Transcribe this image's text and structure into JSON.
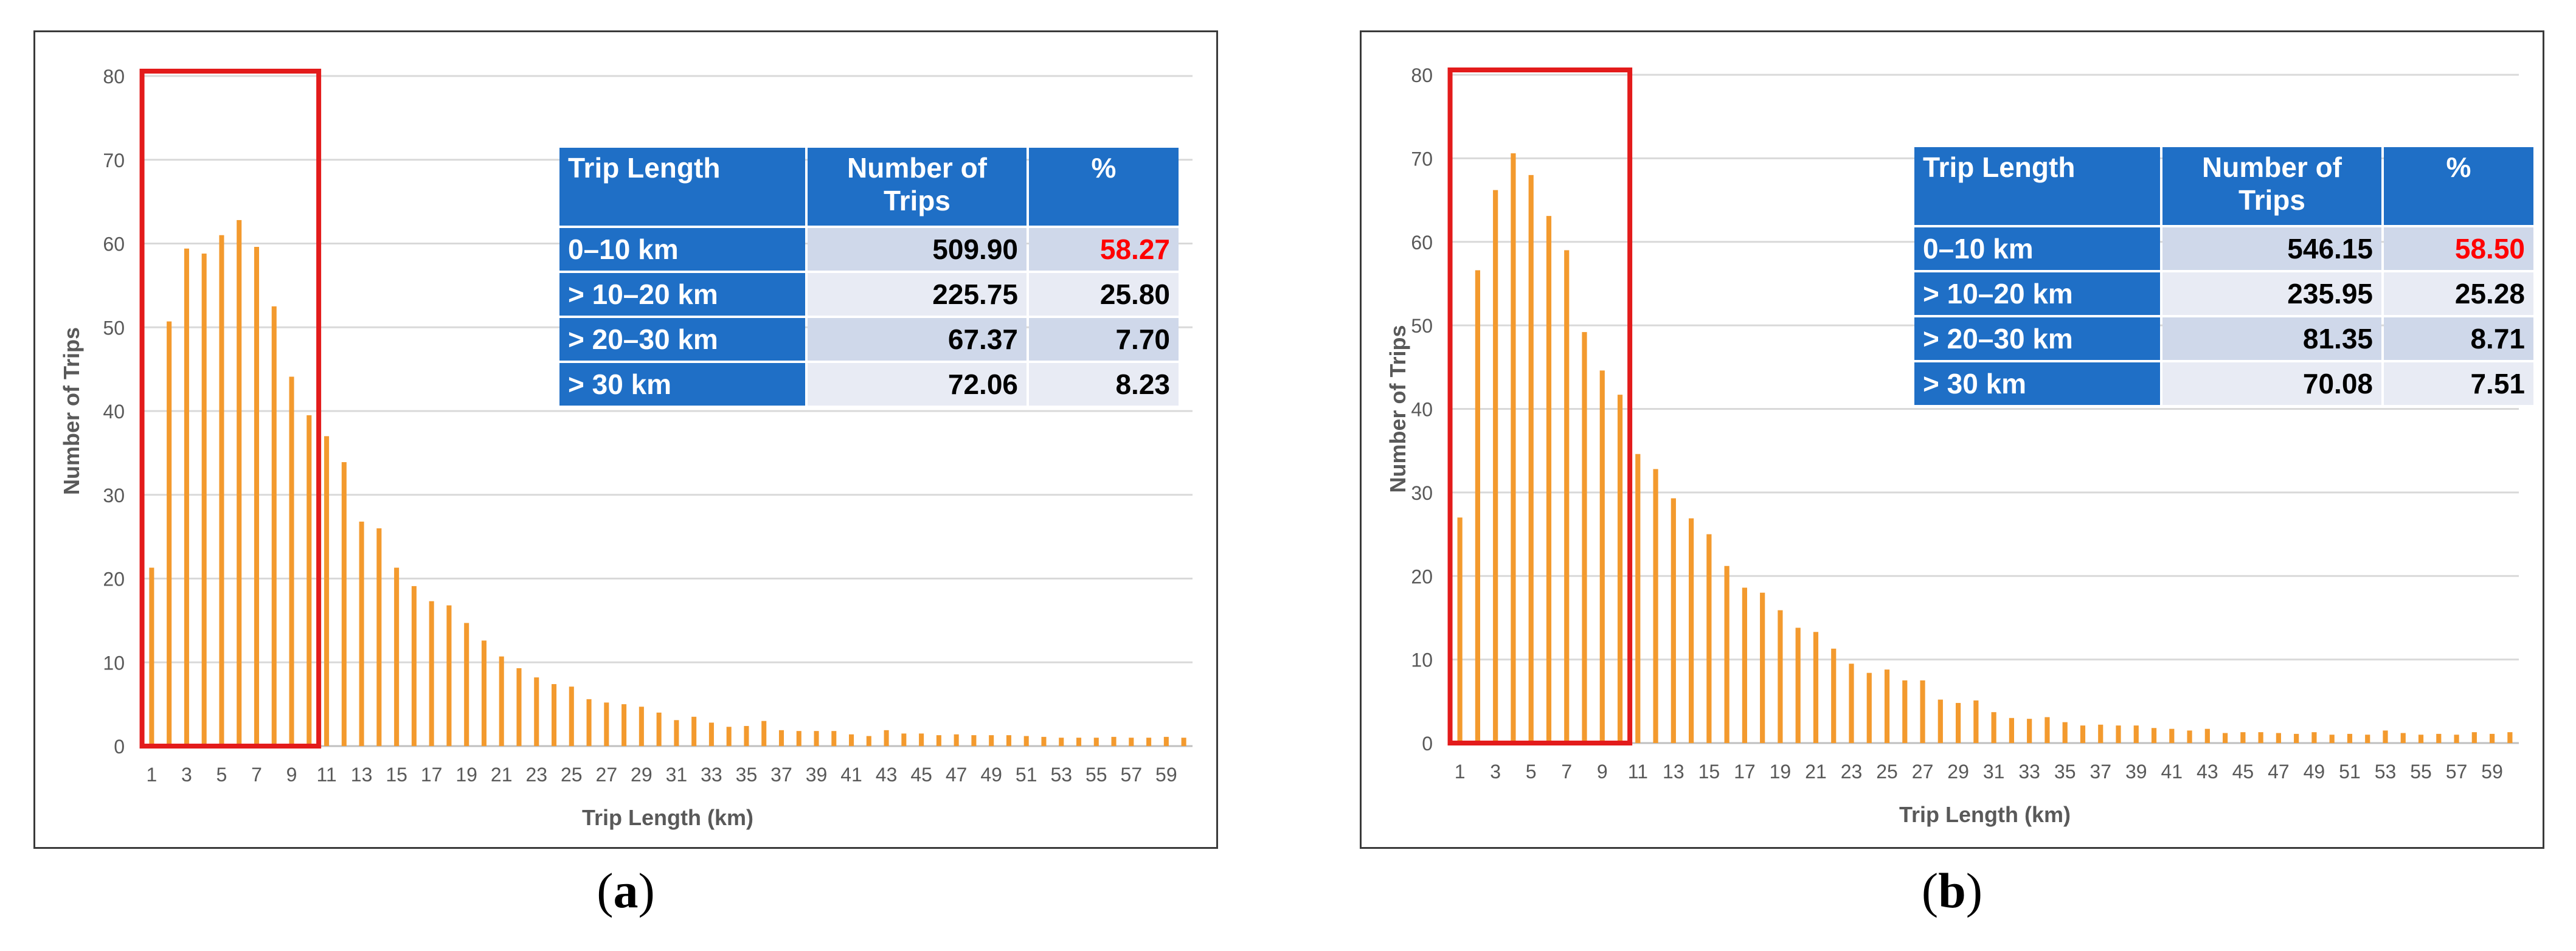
{
  "colors": {
    "bar": "#F39A2E",
    "frame": "#E31B1B",
    "header": "#1F6FC6",
    "highlight": "#FF0000",
    "grid": "#D9D9D9",
    "axis_text": "#595959"
  },
  "chart_data": [
    {
      "type": "bar",
      "panel_label": "a",
      "xlabel": "Trip Length (km)",
      "ylabel": "Number of Trips",
      "ylim": [
        0,
        80
      ],
      "yticks": [
        0,
        10,
        20,
        30,
        40,
        50,
        60,
        70,
        80
      ],
      "x": [
        1,
        2,
        3,
        4,
        5,
        6,
        7,
        8,
        9,
        10,
        11,
        12,
        13,
        14,
        15,
        16,
        17,
        18,
        19,
        20,
        21,
        22,
        23,
        24,
        25,
        26,
        27,
        28,
        29,
        30,
        31,
        32,
        33,
        34,
        35,
        36,
        37,
        38,
        39,
        40,
        41,
        42,
        43,
        44,
        45,
        46,
        47,
        48,
        49,
        50,
        51,
        52,
        53,
        54,
        55,
        56,
        57,
        58,
        59,
        60
      ],
      "xtick_labels": [
        "1",
        "3",
        "5",
        "7",
        "9",
        "11",
        "13",
        "15",
        "17",
        "19",
        "21",
        "23",
        "25",
        "27",
        "29",
        "31",
        "33",
        "35",
        "37",
        "39",
        "41",
        "43",
        "45",
        "47",
        "49",
        "51",
        "53",
        "55",
        "57",
        "59"
      ],
      "values": [
        21.3,
        50.7,
        59.4,
        58.8,
        61.0,
        62.8,
        59.6,
        52.5,
        44.1,
        39.5,
        37.0,
        33.9,
        26.8,
        26.0,
        21.3,
        19.1,
        17.3,
        16.8,
        14.7,
        12.6,
        10.7,
        9.3,
        8.2,
        7.4,
        7.1,
        5.6,
        5.2,
        5.0,
        4.7,
        4.0,
        3.1,
        3.5,
        2.8,
        2.3,
        2.4,
        3.0,
        1.9,
        1.8,
        1.8,
        1.8,
        1.4,
        1.2,
        1.9,
        1.5,
        1.5,
        1.3,
        1.4,
        1.3,
        1.3,
        1.3,
        1.2,
        1.1,
        1.0,
        1.0,
        1.0,
        1.1,
        1.0,
        1.0,
        1.1,
        1.0
      ],
      "highlight_range": [
        1,
        10
      ],
      "table": {
        "headers": [
          "Trip Length",
          "Number of Trips",
          "%"
        ],
        "rows": [
          {
            "label": "0–10 km",
            "trips": "509.90",
            "pct": "58.27"
          },
          {
            "label": "> 10–20 km",
            "trips": "225.75",
            "pct": "25.80"
          },
          {
            "label": "> 20–30 km",
            "trips": "67.37",
            "pct": "7.70"
          },
          {
            "label": "> 30 km",
            "trips": "72.06",
            "pct": "8.23"
          }
        ]
      }
    },
    {
      "type": "bar",
      "panel_label": "b",
      "xlabel": "Trip Length (km)",
      "ylabel": "Number of Trips",
      "ylim": [
        0,
        80
      ],
      "yticks": [
        0,
        10,
        20,
        30,
        40,
        50,
        60,
        70,
        80
      ],
      "x": [
        1,
        2,
        3,
        4,
        5,
        6,
        7,
        8,
        9,
        10,
        11,
        12,
        13,
        14,
        15,
        16,
        17,
        18,
        19,
        20,
        21,
        22,
        23,
        24,
        25,
        26,
        27,
        28,
        29,
        30,
        31,
        32,
        33,
        34,
        35,
        36,
        37,
        38,
        39,
        40,
        41,
        42,
        43,
        44,
        45,
        46,
        47,
        48,
        49,
        50,
        51,
        52,
        53,
        54,
        55,
        56,
        57,
        58,
        59,
        60
      ],
      "xtick_labels": [
        "1",
        "3",
        "5",
        "7",
        "9",
        "11",
        "13",
        "15",
        "17",
        "19",
        "21",
        "23",
        "25",
        "27",
        "29",
        "31",
        "33",
        "35",
        "37",
        "39",
        "41",
        "43",
        "45",
        "47",
        "49",
        "51",
        "53",
        "55",
        "57",
        "59"
      ],
      "values": [
        27.0,
        56.6,
        66.2,
        70.6,
        68.0,
        63.1,
        59.0,
        49.2,
        44.6,
        41.7,
        34.6,
        32.8,
        29.3,
        26.9,
        25.0,
        21.2,
        18.6,
        18.0,
        15.9,
        13.8,
        13.3,
        11.3,
        9.5,
        8.4,
        8.8,
        7.5,
        7.5,
        5.2,
        4.8,
        5.1,
        3.7,
        3.0,
        2.9,
        3.1,
        2.5,
        2.1,
        2.2,
        2.1,
        2.1,
        1.8,
        1.7,
        1.5,
        1.7,
        1.2,
        1.3,
        1.3,
        1.2,
        1.1,
        1.3,
        1.0,
        1.1,
        1.0,
        1.5,
        1.2,
        1.0,
        1.1,
        1.0,
        1.3,
        1.1,
        1.3
      ],
      "highlight_range": [
        1,
        10
      ],
      "table": {
        "headers": [
          "Trip Length",
          "Number of Trips",
          "%"
        ],
        "rows": [
          {
            "label": "0–10 km",
            "trips": "546.15",
            "pct": "58.50"
          },
          {
            "label": "> 10–20 km",
            "trips": "235.95",
            "pct": "25.28"
          },
          {
            "label": "> 20–30 km",
            "trips": "81.35",
            "pct": "8.71"
          },
          {
            "label": "> 30 km",
            "trips": "70.08",
            "pct": "7.51"
          }
        ]
      }
    }
  ],
  "captions": [
    {
      "open": "(",
      "letter": "a",
      "close": ")"
    },
    {
      "open": "(",
      "letter": "b",
      "close": ")"
    }
  ]
}
